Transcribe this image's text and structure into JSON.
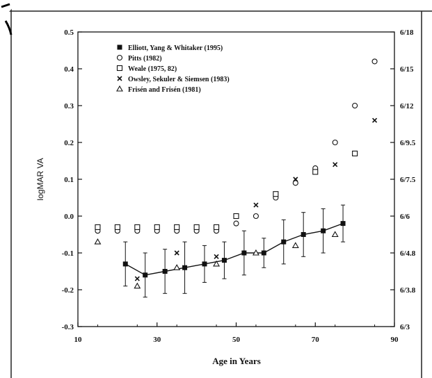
{
  "chart_data": {
    "type": "scatter",
    "xlabel": "Age in Years",
    "ylabel": "logMAR VA",
    "xlim": [
      10,
      90
    ],
    "ylim": [
      -0.3,
      0.5
    ],
    "x_ticks": [
      "10",
      "30",
      "50",
      "70",
      "90"
    ],
    "x_tick_values": [
      10,
      30,
      50,
      70,
      90
    ],
    "y_ticks": [
      "-0.3",
      "-0.2",
      "-0.1",
      "0.0",
      "0.1",
      "0.2",
      "0.3",
      "0.4",
      "0.5"
    ],
    "y_tick_values": [
      -0.3,
      -0.2,
      -0.1,
      0.0,
      0.1,
      0.2,
      0.3,
      0.4,
      0.5
    ],
    "right_ticks": [
      "6/3",
      "6/3.8",
      "6/4.8",
      "6/6",
      "6/7.5",
      "6/9.5",
      "6/12",
      "6/15",
      "6/18"
    ],
    "legend_position": "top-left",
    "grid": false,
    "series": [
      {
        "name": "Elliott, Yang & Whitaker (1995)",
        "marker": "filled-square",
        "connected": true,
        "points": [
          {
            "x": 22,
            "y": -0.13,
            "err": 0.06
          },
          {
            "x": 27,
            "y": -0.16,
            "err": 0.06
          },
          {
            "x": 32,
            "y": -0.15,
            "err": 0.06
          },
          {
            "x": 37,
            "y": -0.14,
            "err": 0.07
          },
          {
            "x": 42,
            "y": -0.13,
            "err": 0.05
          },
          {
            "x": 47,
            "y": -0.12,
            "err": 0.05
          },
          {
            "x": 52,
            "y": -0.1,
            "err": 0.06
          },
          {
            "x": 57,
            "y": -0.1,
            "err": 0.04
          },
          {
            "x": 62,
            "y": -0.07,
            "err": 0.06
          },
          {
            "x": 67,
            "y": -0.05,
            "err": 0.06
          },
          {
            "x": 72,
            "y": -0.04,
            "err": 0.06
          },
          {
            "x": 77,
            "y": -0.02,
            "err": 0.05
          }
        ]
      },
      {
        "name": "Pitts (1982)",
        "marker": "circle",
        "points": [
          {
            "x": 15,
            "y": -0.04
          },
          {
            "x": 20,
            "y": -0.04
          },
          {
            "x": 25,
            "y": -0.04
          },
          {
            "x": 30,
            "y": -0.04
          },
          {
            "x": 35,
            "y": -0.04
          },
          {
            "x": 40,
            "y": -0.04
          },
          {
            "x": 45,
            "y": -0.04
          },
          {
            "x": 50,
            "y": -0.02
          },
          {
            "x": 55,
            "y": 0.0
          },
          {
            "x": 60,
            "y": 0.05
          },
          {
            "x": 65,
            "y": 0.09
          },
          {
            "x": 70,
            "y": 0.13
          },
          {
            "x": 75,
            "y": 0.2
          },
          {
            "x": 80,
            "y": 0.3
          },
          {
            "x": 85,
            "y": 0.42
          }
        ]
      },
      {
        "name": "Weale (1975, 82)",
        "marker": "open-square",
        "points": [
          {
            "x": 15,
            "y": -0.03
          },
          {
            "x": 20,
            "y": -0.03
          },
          {
            "x": 25,
            "y": -0.03
          },
          {
            "x": 30,
            "y": -0.03
          },
          {
            "x": 35,
            "y": -0.03
          },
          {
            "x": 40,
            "y": -0.03
          },
          {
            "x": 45,
            "y": -0.03
          },
          {
            "x": 50,
            "y": 0.0
          },
          {
            "x": 60,
            "y": 0.06
          },
          {
            "x": 70,
            "y": 0.12
          },
          {
            "x": 80,
            "y": 0.17
          }
        ]
      },
      {
        "name": "Owsley, Sekuler & Siemsen (1983)",
        "marker": "x",
        "points": [
          {
            "x": 25,
            "y": -0.17
          },
          {
            "x": 35,
            "y": -0.1
          },
          {
            "x": 45,
            "y": -0.11
          },
          {
            "x": 55,
            "y": 0.03
          },
          {
            "x": 65,
            "y": 0.1
          },
          {
            "x": 75,
            "y": 0.14
          },
          {
            "x": 85,
            "y": 0.26
          }
        ]
      },
      {
        "name": "Frisén and Frisén (1981)",
        "marker": "triangle",
        "points": [
          {
            "x": 15,
            "y": -0.07
          },
          {
            "x": 25,
            "y": -0.19
          },
          {
            "x": 35,
            "y": -0.14
          },
          {
            "x": 45,
            "y": -0.13
          },
          {
            "x": 55,
            "y": -0.1
          },
          {
            "x": 65,
            "y": -0.08
          },
          {
            "x": 75,
            "y": -0.05
          }
        ]
      }
    ]
  }
}
